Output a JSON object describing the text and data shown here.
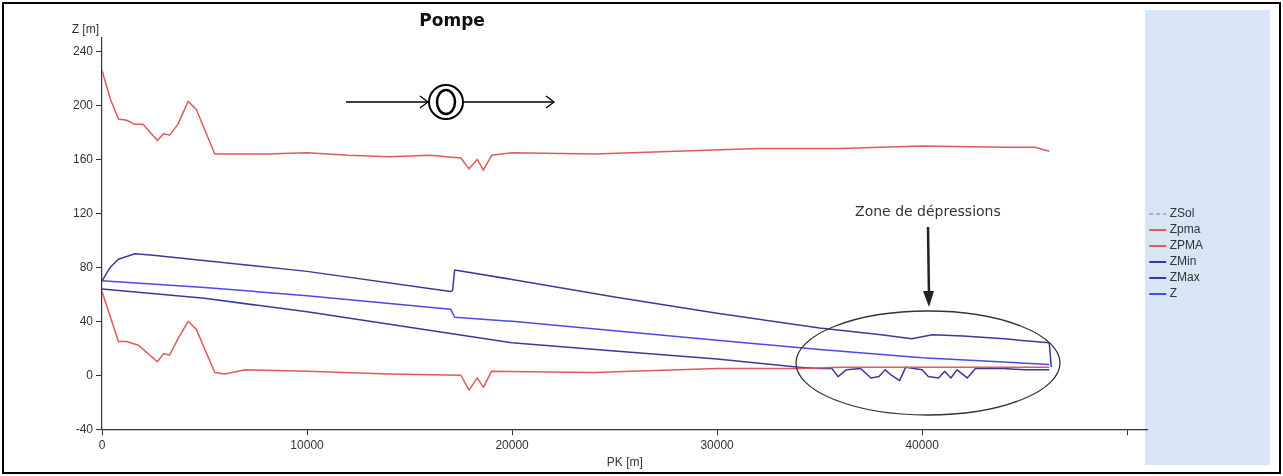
{
  "chart_data": {
    "type": "line",
    "xlabel": "PK [m]",
    "ylabel": "Z [m]",
    "xlim": [
      0,
      51000
    ],
    "xticks": [
      0,
      10000,
      20000,
      30000,
      40000,
      {
        "value": 50000,
        "label": null
      }
    ],
    "ylim": [
      -40,
      250
    ],
    "yticks": [
      -40,
      0,
      40,
      80,
      120,
      160,
      200,
      240
    ],
    "grid": false,
    "legend": "right",
    "marker": "none",
    "annotations": [
      "Pompe",
      "Zone de dépressions"
    ],
    "series": [
      {
        "name": "ZSol",
        "color": "#b0b0b0",
        "line_style": "dashed"
      },
      {
        "name": "Zpma",
        "color": "#e05a5a",
        "x": [
          0,
          800,
          1200,
          1800,
          2700,
          3000,
          3300,
          3700,
          4200,
          4600,
          5500,
          6000,
          7000,
          10000,
          14000,
          17500,
          17900,
          18300,
          18600,
          19000,
          24000,
          30000,
          34000,
          36000,
          40000,
          46200
        ],
        "values": [
          62,
          25,
          25,
          22,
          10,
          16,
          15,
          27,
          40,
          34,
          2,
          1,
          4,
          3,
          1,
          0,
          -11,
          -2,
          -9,
          3,
          2,
          5,
          5,
          6,
          6,
          6
        ]
      },
      {
        "name": "ZPMA",
        "color": "#e05a5a",
        "x": [
          0,
          400,
          800,
          1200,
          1600,
          2000,
          2700,
          3000,
          3300,
          3700,
          4200,
          4600,
          5500,
          6000,
          8000,
          10000,
          12000,
          14000,
          16000,
          17500,
          17900,
          18300,
          18600,
          19000,
          20000,
          24000,
          28000,
          32000,
          36000,
          40000,
          44000,
          45500,
          46200
        ],
        "values": [
          226,
          205,
          190,
          189,
          186,
          186,
          174,
          179,
          178,
          186,
          203,
          197,
          164,
          164,
          164,
          165,
          163,
          162,
          163,
          161,
          153,
          160,
          152,
          163,
          165,
          164,
          166,
          168,
          168,
          170,
          169,
          169,
          166
        ]
      },
      {
        "name": "ZMin",
        "color": "#3a3a9a",
        "x": [
          0,
          5000,
          10000,
          17000,
          20000,
          25000,
          30000,
          34000,
          35000,
          35600,
          35900,
          36300,
          37000,
          37500,
          37900,
          38200,
          38500,
          38900,
          39200,
          40000,
          40300,
          40800,
          41100,
          41400,
          41700,
          42200,
          42600,
          44000,
          45000,
          46200
        ],
        "values": [
          64,
          57,
          47,
          31,
          24,
          18,
          12,
          6,
          5,
          5,
          -1,
          4,
          5,
          -2,
          -1,
          4,
          0,
          -4,
          6,
          4,
          -1,
          -2,
          3,
          -2,
          4,
          -2,
          5,
          5,
          4,
          4
        ]
      },
      {
        "name": "ZMax",
        "color": "#3a3a9a",
        "x": [
          0,
          400,
          800,
          1600,
          2500,
          10000,
          17000,
          17100,
          17200,
          20000,
          25000,
          30000,
          35000,
          38000,
          39500,
          40500,
          42000,
          44000,
          46200,
          46300
        ],
        "values": [
          70,
          80,
          86,
          90,
          89,
          77,
          62,
          63,
          78,
          71,
          58,
          46,
          35,
          30,
          27,
          30,
          29,
          27,
          24,
          6
        ]
      },
      {
        "name": "Z",
        "color": "#4a4ae6",
        "x": [
          0,
          5000,
          10000,
          17000,
          17200,
          20000,
          25000,
          30000,
          35000,
          40000,
          46200
        ],
        "values": [
          70,
          65,
          59,
          49,
          43,
          40,
          33,
          26,
          19,
          13,
          8
        ]
      }
    ]
  }
}
